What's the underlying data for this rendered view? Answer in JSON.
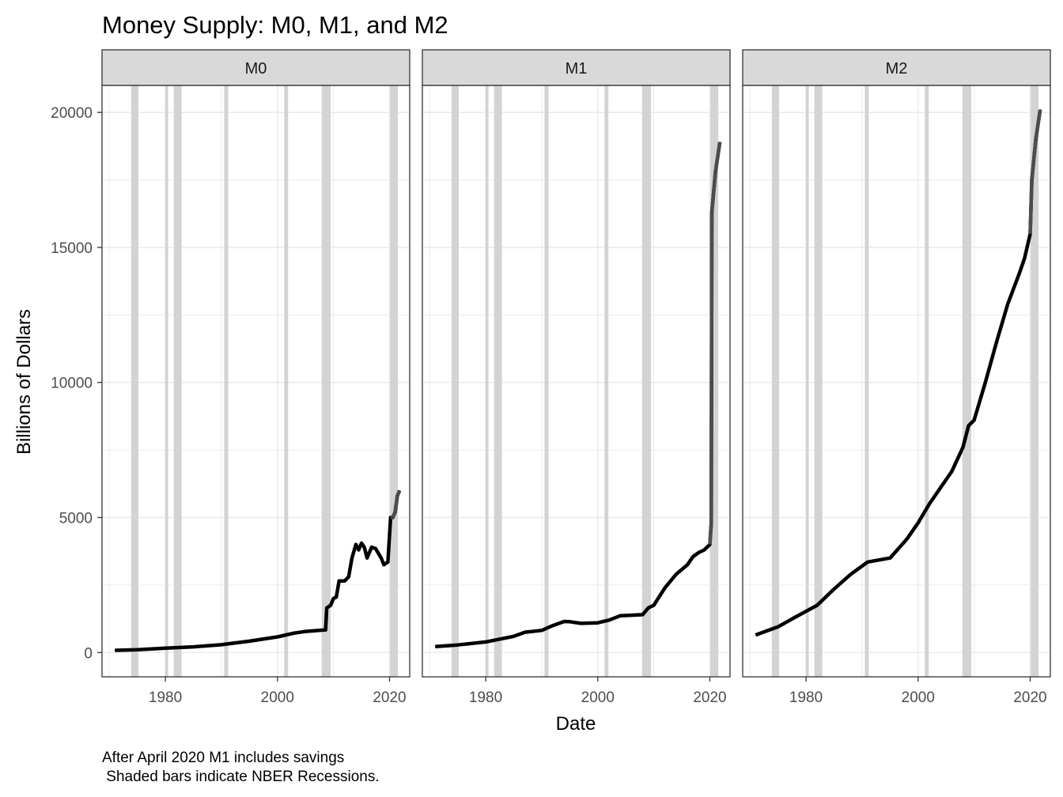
{
  "chart_data": {
    "type": "line",
    "title": "Money Supply: M0, M1, and M2",
    "xlabel": "Date",
    "ylabel": "Billions of Dollars",
    "caption_lines": [
      "After April 2020 M1 includes savings",
      " Shaded bars indicate NBER Recessions."
    ],
    "xlim": [
      1968.7,
      2023.6
    ],
    "ylim": [
      -900,
      21000
    ],
    "x_ticks": [
      1980,
      2000,
      2020
    ],
    "x_tick_labels": [
      "1980",
      "2000",
      "2020"
    ],
    "y_ticks": [
      0,
      5000,
      10000,
      15000,
      20000
    ],
    "y_tick_labels": [
      "0",
      "5000",
      "10000",
      "15000",
      "20000"
    ],
    "grid": true,
    "recessions": [
      [
        1973.9,
        1975.2
      ],
      [
        1980.0,
        1980.5
      ],
      [
        1981.5,
        1982.9
      ],
      [
        1990.5,
        1991.2
      ],
      [
        2001.2,
        2001.9
      ],
      [
        2007.9,
        2009.5
      ],
      [
        2020.1,
        2021.5
      ]
    ],
    "colors": {
      "line": "#000000",
      "line_recent": "#4d4d4d",
      "recession": "#d3d3d3",
      "strip": "#d9d9d9",
      "grid": "#ebebeb"
    },
    "panels": [
      {
        "name": "M0",
        "series": [
          {
            "x": 1971.0,
            "y": 80
          },
          {
            "x": 1975.0,
            "y": 100
          },
          {
            "x": 1980.0,
            "y": 160
          },
          {
            "x": 1985.0,
            "y": 210
          },
          {
            "x": 1990.0,
            "y": 290
          },
          {
            "x": 1995.0,
            "y": 420
          },
          {
            "x": 2000.0,
            "y": 580
          },
          {
            "x": 2003.0,
            "y": 720
          },
          {
            "x": 2005.0,
            "y": 780
          },
          {
            "x": 2008.6,
            "y": 840
          },
          {
            "x": 2008.8,
            "y": 1650
          },
          {
            "x": 2009.5,
            "y": 1750
          },
          {
            "x": 2010.0,
            "y": 2000
          },
          {
            "x": 2010.5,
            "y": 2050
          },
          {
            "x": 2011.0,
            "y": 2650
          },
          {
            "x": 2012.0,
            "y": 2650
          },
          {
            "x": 2012.7,
            "y": 2800
          },
          {
            "x": 2013.3,
            "y": 3500
          },
          {
            "x": 2014.0,
            "y": 4000
          },
          {
            "x": 2014.5,
            "y": 3800
          },
          {
            "x": 2015.0,
            "y": 4050
          },
          {
            "x": 2015.5,
            "y": 3900
          },
          {
            "x": 2016.0,
            "y": 3500
          },
          {
            "x": 2016.8,
            "y": 3900
          },
          {
            "x": 2017.5,
            "y": 3850
          },
          {
            "x": 2018.5,
            "y": 3500
          },
          {
            "x": 2019.0,
            "y": 3250
          },
          {
            "x": 2019.7,
            "y": 3350
          },
          {
            "x": 2020.2,
            "y": 5000
          },
          {
            "x": 2020.6,
            "y": 5000
          },
          {
            "x": 2021.0,
            "y": 5200
          },
          {
            "x": 2021.4,
            "y": 5800
          },
          {
            "x": 2021.8,
            "y": 6000
          }
        ]
      },
      {
        "name": "M1",
        "series": [
          {
            "x": 1971.0,
            "y": 220
          },
          {
            "x": 1975.0,
            "y": 280
          },
          {
            "x": 1980.0,
            "y": 390
          },
          {
            "x": 1985.0,
            "y": 600
          },
          {
            "x": 1987.0,
            "y": 750
          },
          {
            "x": 1990.0,
            "y": 820
          },
          {
            "x": 1992.0,
            "y": 1000
          },
          {
            "x": 1994.0,
            "y": 1150
          },
          {
            "x": 1995.0,
            "y": 1140
          },
          {
            "x": 1997.0,
            "y": 1080
          },
          {
            "x": 2000.0,
            "y": 1100
          },
          {
            "x": 2002.0,
            "y": 1200
          },
          {
            "x": 2004.0,
            "y": 1360
          },
          {
            "x": 2006.0,
            "y": 1380
          },
          {
            "x": 2008.0,
            "y": 1400
          },
          {
            "x": 2009.0,
            "y": 1650
          },
          {
            "x": 2010.0,
            "y": 1750
          },
          {
            "x": 2012.0,
            "y": 2400
          },
          {
            "x": 2014.0,
            "y": 2900
          },
          {
            "x": 2016.0,
            "y": 3250
          },
          {
            "x": 2017.0,
            "y": 3550
          },
          {
            "x": 2018.0,
            "y": 3700
          },
          {
            "x": 2019.0,
            "y": 3800
          },
          {
            "x": 2020.0,
            "y": 4000
          },
          {
            "x": 2020.25,
            "y": 4800
          },
          {
            "x": 2020.35,
            "y": 16300
          },
          {
            "x": 2021.0,
            "y": 17800
          },
          {
            "x": 2021.8,
            "y": 18900
          }
        ]
      },
      {
        "name": "M2",
        "series": [
          {
            "x": 1971.0,
            "y": 650
          },
          {
            "x": 1975.0,
            "y": 950
          },
          {
            "x": 1978.0,
            "y": 1300
          },
          {
            "x": 1982.0,
            "y": 1750
          },
          {
            "x": 1985.0,
            "y": 2350
          },
          {
            "x": 1988.0,
            "y": 2900
          },
          {
            "x": 1991.0,
            "y": 3350
          },
          {
            "x": 1995.0,
            "y": 3500
          },
          {
            "x": 1998.0,
            "y": 4200
          },
          {
            "x": 2000.0,
            "y": 4800
          },
          {
            "x": 2002.0,
            "y": 5500
          },
          {
            "x": 2004.0,
            "y": 6100
          },
          {
            "x": 2006.0,
            "y": 6700
          },
          {
            "x": 2008.0,
            "y": 7600
          },
          {
            "x": 2009.0,
            "y": 8400
          },
          {
            "x": 2010.0,
            "y": 8600
          },
          {
            "x": 2012.0,
            "y": 10000
          },
          {
            "x": 2014.0,
            "y": 11500
          },
          {
            "x": 2016.0,
            "y": 12900
          },
          {
            "x": 2018.0,
            "y": 14000
          },
          {
            "x": 2019.0,
            "y": 14600
          },
          {
            "x": 2020.0,
            "y": 15500
          },
          {
            "x": 2020.3,
            "y": 17500
          },
          {
            "x": 2021.0,
            "y": 19000
          },
          {
            "x": 2021.8,
            "y": 20100
          }
        ]
      }
    ]
  }
}
